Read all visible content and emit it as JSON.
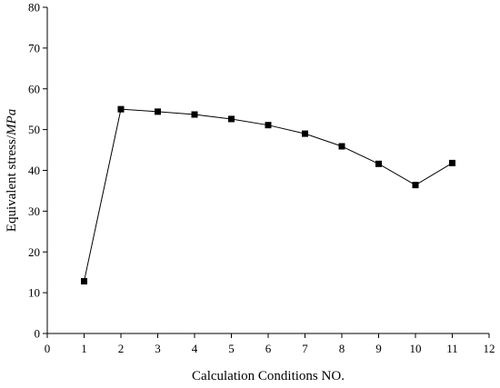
{
  "chart_data": {
    "type": "line",
    "title": "",
    "xlabel": "Calculation Conditions NO.",
    "ylabel": "Equivalent stress/",
    "ylabel_unit": "MPa",
    "xlim": [
      0,
      12
    ],
    "ylim": [
      0,
      80
    ],
    "xticks": [
      0,
      1,
      2,
      3,
      4,
      5,
      6,
      7,
      8,
      9,
      10,
      11,
      12
    ],
    "yticks": [
      0,
      10,
      20,
      30,
      40,
      50,
      60,
      70,
      80
    ],
    "grid": false,
    "legend": "none",
    "series": [
      {
        "marker": "square",
        "color": "#000000",
        "x": [
          1,
          2,
          3,
          4,
          5,
          6,
          7,
          8,
          9,
          10,
          11
        ],
        "y": [
          12.8,
          55.0,
          54.4,
          53.7,
          52.6,
          51.1,
          49.0,
          45.9,
          41.6,
          36.4,
          41.8
        ]
      }
    ]
  }
}
